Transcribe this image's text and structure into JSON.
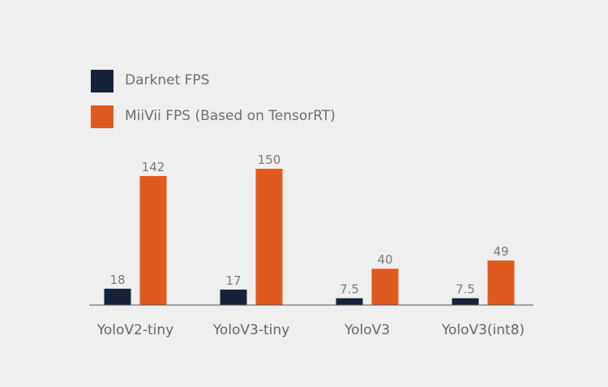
{
  "legend": {
    "items": [
      {
        "label": "Darknet FPS",
        "color": "#16223a"
      },
      {
        "label": "MiiVii FPS (Based on TensorRT)",
        "color": "#e05a1f"
      }
    ]
  },
  "chart_data": {
    "type": "bar",
    "categories": [
      "YoloV2-tiny",
      "YoloV3-tiny",
      "YoloV3",
      "YoloV3(int8)"
    ],
    "series": [
      {
        "name": "Darknet FPS",
        "values": [
          18,
          17,
          7.5,
          7.5
        ],
        "value_labels": [
          "18",
          "17",
          "7.5",
          "7.5"
        ],
        "color": "#16223a"
      },
      {
        "name": "MiiVii FPS (Based on TensorRT)",
        "values": [
          142,
          150,
          40,
          49
        ],
        "value_labels": [
          "142",
          "150",
          "40",
          "49"
        ],
        "color": "#e05a1f"
      }
    ],
    "title": "",
    "xlabel": "",
    "ylabel": "",
    "ylim": [
      0,
      150
    ],
    "grid": false,
    "legend_position": "top-left",
    "baseline_color": "#555555"
  }
}
